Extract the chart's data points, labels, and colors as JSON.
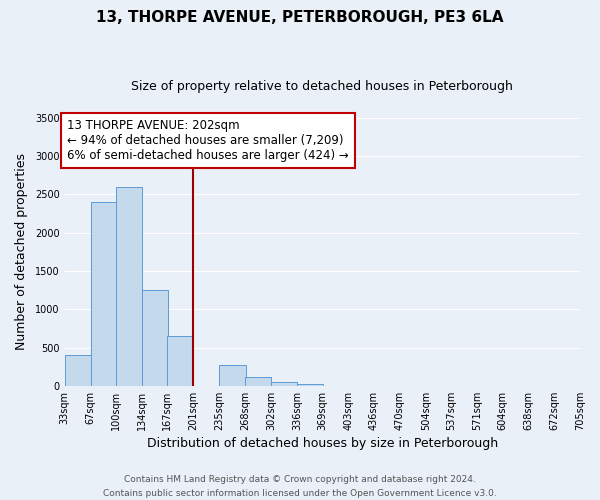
{
  "title": "13, THORPE AVENUE, PETERBOROUGH, PE3 6LA",
  "subtitle": "Size of property relative to detached houses in Peterborough",
  "xlabel": "Distribution of detached houses by size in Peterborough",
  "ylabel": "Number of detached properties",
  "footnote1": "Contains HM Land Registry data © Crown copyright and database right 2024.",
  "footnote2": "Contains public sector information licensed under the Open Government Licence v3.0.",
  "bar_edges": [
    33,
    67,
    100,
    134,
    167,
    201,
    235,
    268,
    302,
    336,
    369,
    403,
    436,
    470,
    504,
    537,
    571,
    604,
    638,
    672,
    705
  ],
  "bar_heights": [
    400,
    2400,
    2600,
    1250,
    650,
    0,
    270,
    110,
    50,
    30,
    0,
    0,
    0,
    0,
    0,
    0,
    0,
    0,
    0,
    0
  ],
  "bar_color": "#c5d9ed",
  "bar_edgecolor": "#5b9bd5",
  "vline_x": 201,
  "vline_color": "#9b0000",
  "annotation_line1": "13 THORPE AVENUE: 202sqm",
  "annotation_line2": "← 94% of detached houses are smaller (7,209)",
  "annotation_line3": "6% of semi-detached houses are larger (424) →",
  "annotation_box_color": "#c00000",
  "ylim": [
    0,
    3500
  ],
  "yticks": [
    0,
    500,
    1000,
    1500,
    2000,
    2500,
    3000,
    3500
  ],
  "tick_labels": [
    "33sqm",
    "67sqm",
    "100sqm",
    "134sqm",
    "167sqm",
    "201sqm",
    "235sqm",
    "268sqm",
    "302sqm",
    "336sqm",
    "369sqm",
    "403sqm",
    "436sqm",
    "470sqm",
    "504sqm",
    "537sqm",
    "571sqm",
    "604sqm",
    "638sqm",
    "672sqm",
    "705sqm"
  ],
  "background_color": "#eaf0f8",
  "grid_color": "#ffffff",
  "title_fontsize": 11,
  "subtitle_fontsize": 9,
  "axis_label_fontsize": 9,
  "tick_fontsize": 7,
  "annotation_fontsize": 8.5,
  "footnote_fontsize": 6.5
}
